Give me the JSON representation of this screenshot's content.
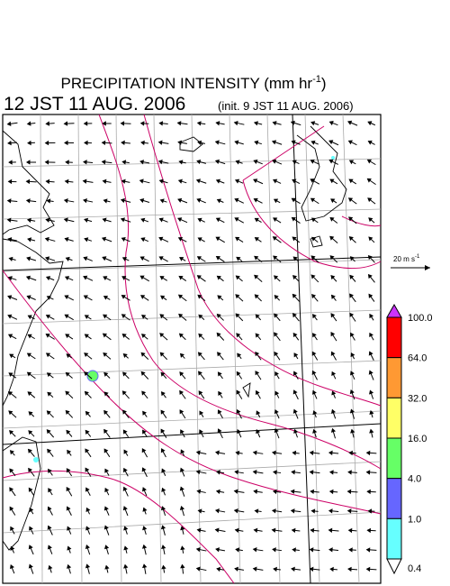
{
  "title": {
    "prefix": "PRECIPITATION INTENSITY (mm hr",
    "exponent": "-1",
    "suffix": ")"
  },
  "valid_time": "12 JST 11 AUG. 2006",
  "init_time": "(init. 9 JST 11 AUG. 2006)",
  "vector_scale": {
    "prefix": "20 m s",
    "exponent": "-1"
  },
  "colorbar": {
    "labels": [
      "100.0",
      "64.0",
      "32.0",
      "16.0",
      "4.0",
      "1.0",
      "0.4"
    ],
    "colors": [
      "#ff0000",
      "#ff9933",
      "#ffff66",
      "#66ff66",
      "#6666ff",
      "#66ffff"
    ],
    "over_color": "#cc33ff",
    "under_color": "#ffffff"
  }
}
